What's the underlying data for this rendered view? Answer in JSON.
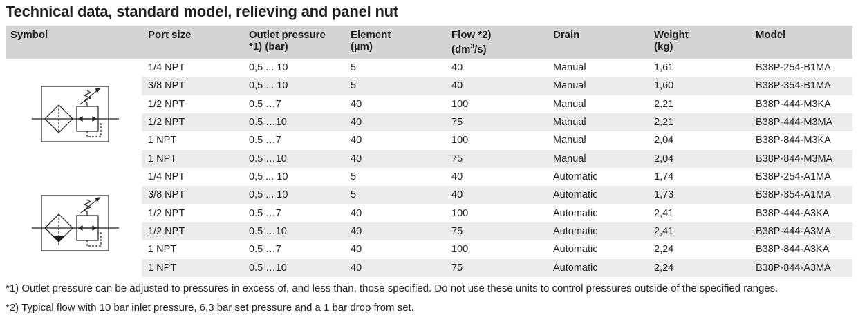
{
  "title": "Technical data, standard model, relieving and panel nut",
  "headers": {
    "symbol": "Symbol",
    "port_size": "Port size",
    "outlet_pressure_1": "Outlet pressure",
    "outlet_pressure_2": "*1) (bar)",
    "element_1": "Element",
    "element_2": "(µm)",
    "flow_1": "Flow *2)",
    "flow_2_pre": "(dm",
    "flow_2_sup": "3",
    "flow_2_post": "/s)",
    "drain": "Drain",
    "weight_1": "Weight",
    "weight_2": "(kg)",
    "model": "Model"
  },
  "groups": [
    {
      "symbol_icon": "filter-regulator-manual-drain-icon",
      "rows": [
        {
          "port": "1/4 NPT",
          "pressure": "0,5 ... 10",
          "element": "5",
          "flow": "40",
          "drain": "Manual",
          "weight": "1,61",
          "model": "B38P-254-B1MA"
        },
        {
          "port": "3/8 NPT",
          "pressure": "0,5 ... 10",
          "element": "5",
          "flow": "40",
          "drain": "Manual",
          "weight": "1,60",
          "model": "B38P-354-B1MA"
        },
        {
          "port": "1/2 NPT",
          "pressure": "0.5 …7",
          "element": "40",
          "flow": "100",
          "drain": "Manual",
          "weight": "2,21",
          "model": "B38P-444-M3KA"
        },
        {
          "port": "1/2 NPT",
          "pressure": "0.5 …10",
          "element": "40",
          "flow": "75",
          "drain": "Manual",
          "weight": "2,21",
          "model": "B38P-444-M3MA"
        },
        {
          "port": "1 NPT",
          "pressure": "0.5 …7",
          "element": "40",
          "flow": "100",
          "drain": "Manual",
          "weight": "2,04",
          "model": "B38P-844-M3KA"
        },
        {
          "port": "1 NPT",
          "pressure": "0.5 …10",
          "element": "40",
          "flow": "75",
          "drain": "Manual",
          "weight": "2,04",
          "model": "B38P-844-M3MA"
        }
      ]
    },
    {
      "symbol_icon": "filter-regulator-automatic-drain-icon",
      "rows": [
        {
          "port": "1/4 NPT",
          "pressure": "0,5 ... 10",
          "element": "5",
          "flow": "40",
          "drain": "Automatic",
          "weight": "1,74",
          "model": "B38P-254-A1MA"
        },
        {
          "port": "3/8 NPT",
          "pressure": "0,5 ... 10",
          "element": "5",
          "flow": "40",
          "drain": "Automatic",
          "weight": "1,73",
          "model": "B38P-354-A1MA"
        },
        {
          "port": "1/2 NPT",
          "pressure": "0.5 …7",
          "element": "40",
          "flow": "100",
          "drain": "Automatic",
          "weight": "2,41",
          "model": "B38P-444-A3KA"
        },
        {
          "port": "1/2 NPT",
          "pressure": "0.5 …10",
          "element": "40",
          "flow": "75",
          "drain": "Automatic",
          "weight": "2,41",
          "model": "B38P-444-A3MA"
        },
        {
          "port": "1 NPT",
          "pressure": "0.5 …7",
          "element": "40",
          "flow": "100",
          "drain": "Automatic",
          "weight": "2,24",
          "model": "B38P-844-A3KA"
        },
        {
          "port": "1 NPT",
          "pressure": "0.5 …10",
          "element": "40",
          "flow": "75",
          "drain": "Automatic",
          "weight": "2,24",
          "model": "B38P-844-A3MA"
        }
      ]
    }
  ],
  "footnotes": [
    "*1) Outlet pressure can be adjusted to pressures in excess of, and less than, those specified. Do not use these units to control pressures outside of the specified ranges.",
    "*2) Typical flow with 10 bar inlet pressure, 6,3 bar set pressure and a 1 bar drop from set."
  ]
}
